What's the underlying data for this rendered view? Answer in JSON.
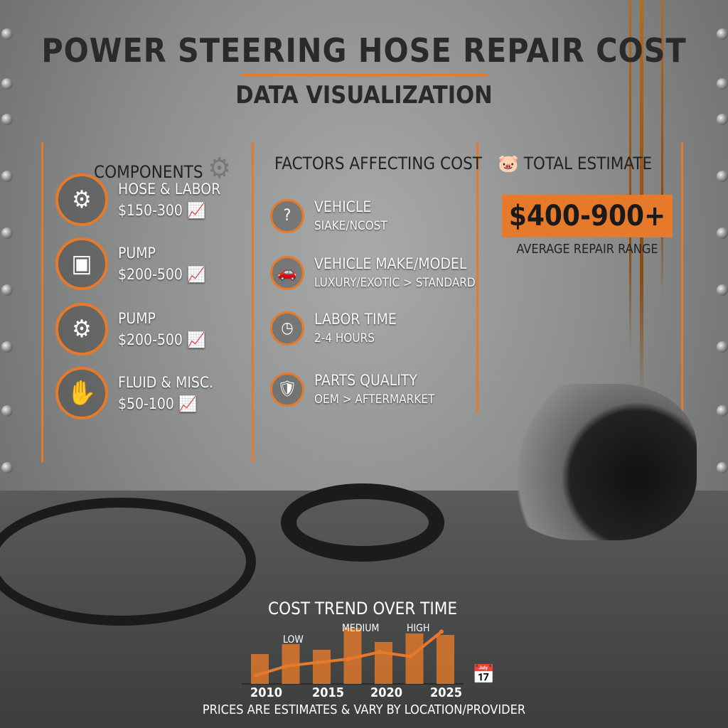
{
  "title": "POWER STEERING HOSE REPAIR COST",
  "subtitle": "DATA VISUALIZATION",
  "accent": "#e67a2a",
  "components": {
    "heading": "COMPONENTS",
    "heading_icon": "gear-icon",
    "items": [
      {
        "icon": "wrench-gear-icon",
        "name": "HOSE & LABOR",
        "price": "$150-300"
      },
      {
        "icon": "engine-icon",
        "name": "PUMP",
        "price": "$200-500"
      },
      {
        "icon": "pump-gear-icon",
        "name": "PUMP",
        "price": "$200-500"
      },
      {
        "icon": "hand-wrench-icon",
        "name": "FLUID & MISC.",
        "price": "$50-100"
      }
    ]
  },
  "factors": {
    "heading": "FACTORS AFFECTING COST",
    "items": [
      {
        "icon": "question-icon",
        "name": "VEHICLE",
        "detail": "SIAKE/NCOST"
      },
      {
        "icon": "car-icon",
        "name": "VEHICLE MAKE/MODEL",
        "detail": "LUXURY/EXOTIC > STANDARD"
      },
      {
        "icon": "clock-icon",
        "name": "LABOR TIME",
        "detail": "2-4 HOURS"
      },
      {
        "icon": "shield-wrench-icon",
        "name": "PARTS QUALITY",
        "detail": "OEM > AFTERMARKET"
      }
    ]
  },
  "total": {
    "heading": "TOTAL ESTIMATE",
    "icon": "piggy-bank-icon",
    "value": "$400-900+",
    "caption": "AVERAGE REPAIR RANGE"
  },
  "chart_data": {
    "type": "bar",
    "title": "COST TREND OVER TIME",
    "x_ticks": [
      "2010",
      "2015",
      "2020",
      "2025"
    ],
    "annotations": [
      "LOW",
      "MEDIUM",
      "HIGH"
    ],
    "bars": [
      42,
      56,
      48,
      79,
      59,
      71,
      69
    ],
    "line": [
      10,
      29,
      36,
      43,
      57,
      48,
      98
    ],
    "icon": "calendar-icon"
  },
  "footer": "PRICES ARE ESTIMATES & VARY BY LOCATION/PROVIDER"
}
